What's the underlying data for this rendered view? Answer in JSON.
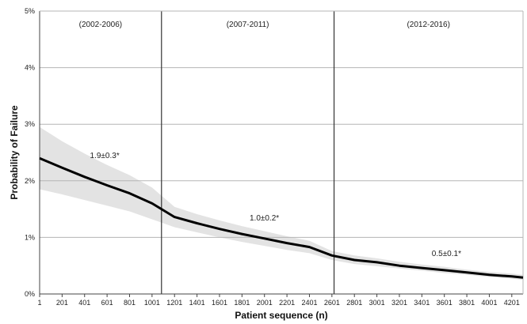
{
  "chart_data": {
    "type": "line",
    "title": "",
    "xlabel": "Patient sequence (n)",
    "ylabel": "Probability of Failure",
    "xlim": [
      1,
      4301
    ],
    "ylim": [
      0,
      5
    ],
    "x_ticks": [
      "1",
      "201",
      "401",
      "601",
      "801",
      "1001",
      "1201",
      "1401",
      "1601",
      "1801",
      "2001",
      "2201",
      "2401",
      "2601",
      "2801",
      "3001",
      "3201",
      "3401",
      "3601",
      "3801",
      "4001",
      "4201"
    ],
    "y_ticks": [
      "0%",
      "1%",
      "2%",
      "3%",
      "4%",
      "5%"
    ],
    "grid": "horizontal",
    "legend": "none",
    "colors": {
      "line": "#000000",
      "band": "#e3e3e3",
      "grid": "#b5b5b5",
      "divider": "#333333"
    },
    "period_dividers": [
      1085,
      2620
    ],
    "periods": [
      {
        "label": "(2002-2006)",
        "x": 543
      },
      {
        "label": "(2007-2011)",
        "x": 1852
      },
      {
        "label": "(2012-2016)",
        "x": 3460
      }
    ],
    "annotations": [
      {
        "text": "1.9±0.3*",
        "x": 580,
        "y": 2.4
      },
      {
        "text": "1.0±0.2*",
        "x": 2000,
        "y": 1.3
      },
      {
        "text": "0.5±0.1*",
        "x": 3620,
        "y": 0.67
      }
    ],
    "series": [
      {
        "x": [
          1,
          201,
          401,
          601,
          801,
          1001,
          1201,
          1401,
          1601,
          1801,
          2001,
          2201,
          2401,
          2601,
          2801,
          3001,
          3201,
          3401,
          3601,
          3801,
          4001,
          4201,
          4301
        ],
        "y": [
          2.4,
          2.23,
          2.07,
          1.92,
          1.78,
          1.6,
          1.36,
          1.25,
          1.15,
          1.06,
          0.98,
          0.9,
          0.83,
          0.68,
          0.6,
          0.56,
          0.5,
          0.46,
          0.42,
          0.38,
          0.34,
          0.31,
          0.29
        ],
        "lower": [
          1.85,
          1.76,
          1.66,
          1.56,
          1.46,
          1.32,
          1.18,
          1.09,
          1.0,
          0.92,
          0.85,
          0.78,
          0.72,
          0.6,
          0.53,
          0.49,
          0.45,
          0.41,
          0.37,
          0.34,
          0.3,
          0.27,
          0.25
        ],
        "upper": [
          2.95,
          2.7,
          2.48,
          2.28,
          2.1,
          1.88,
          1.54,
          1.41,
          1.3,
          1.2,
          1.11,
          1.02,
          0.94,
          0.76,
          0.68,
          0.63,
          0.57,
          0.52,
          0.48,
          0.43,
          0.39,
          0.36,
          0.34
        ]
      }
    ]
  }
}
